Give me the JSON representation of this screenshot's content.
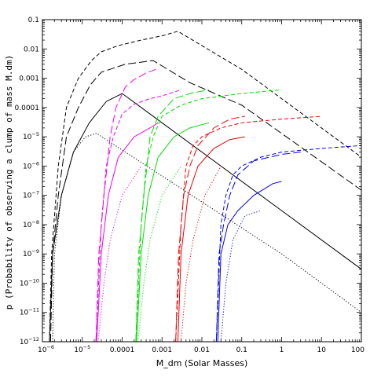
{
  "chart_data": {
    "type": "line",
    "title": "",
    "xlabel": "M_dm (Solar Masses)",
    "ylabel": "p (Probability of observing a clump of mass M.dm)",
    "xscale": "log",
    "yscale": "log",
    "xlim": [
      1e-06,
      100
    ],
    "ylim": [
      1e-12,
      0.1
    ],
    "grid": false,
    "legend": "none",
    "x_ticks": [
      {
        "v": 1e-06,
        "base": "10",
        "exp": "−6"
      },
      {
        "v": 1e-05,
        "base": "10",
        "exp": "−5"
      },
      {
        "v": 0.0001,
        "text": "0.0001"
      },
      {
        "v": 0.001,
        "text": "0.001"
      },
      {
        "v": 0.01,
        "text": "0.01"
      },
      {
        "v": 0.1,
        "text": "0.1"
      },
      {
        "v": 1,
        "text": "1"
      },
      {
        "v": 10,
        "text": "10"
      },
      {
        "v": 100,
        "text": "100"
      }
    ],
    "y_ticks": [
      {
        "v": 1e-12,
        "base": "10",
        "exp": "−12"
      },
      {
        "v": 1e-11,
        "base": "10",
        "exp": "−11"
      },
      {
        "v": 1e-10,
        "base": "10",
        "exp": "−10"
      },
      {
        "v": 1e-09,
        "base": "10",
        "exp": "−9"
      },
      {
        "v": 1e-08,
        "base": "10",
        "exp": "−8"
      },
      {
        "v": 1e-07,
        "base": "10",
        "exp": "−7"
      },
      {
        "v": 1e-06,
        "base": "10",
        "exp": "−6"
      },
      {
        "v": 1e-05,
        "base": "10",
        "exp": "−5"
      },
      {
        "v": 0.0001,
        "text": "0.0001"
      },
      {
        "v": 0.001,
        "text": "0.001"
      },
      {
        "v": 0.01,
        "text": "0.01"
      },
      {
        "v": 0.1,
        "text": "0.1"
      }
    ],
    "series": [
      {
        "color": "#000000",
        "style": "dotted",
        "points": [
          [
            1.8e-06,
            1e-12
          ],
          [
            2e-06,
            1e-09
          ],
          [
            3e-06,
            1e-07
          ],
          [
            6e-06,
            3e-06
          ],
          [
            1.2e-05,
            1e-05
          ],
          [
            2.3e-05,
            1.3e-05
          ],
          [
            1,
            1e-09
          ],
          [
            100,
            1e-11
          ]
        ]
      },
      {
        "color": "#000000",
        "style": "solid",
        "points": [
          [
            1.5e-06,
            1e-12
          ],
          [
            1.8e-06,
            1e-09
          ],
          [
            3e-06,
            1e-07
          ],
          [
            6e-06,
            3e-06
          ],
          [
            1.5e-05,
            3e-05
          ],
          [
            4e-05,
            0.00016
          ],
          [
            0.0001,
            0.0003
          ],
          [
            0.001,
            3e-05
          ],
          [
            1,
            3e-08
          ],
          [
            100,
            3e-10
          ]
        ]
      },
      {
        "color": "#000000",
        "style": "dashed",
        "points": [
          [
            1.5e-06,
            1e-12
          ],
          [
            1.7e-06,
            1e-09
          ],
          [
            2.5e-06,
            1e-06
          ],
          [
            4e-06,
            0.0001
          ],
          [
            8e-06,
            0.001
          ],
          [
            1.7e-05,
            0.004
          ],
          [
            3e-05,
            0.008
          ],
          [
            8e-05,
            0.013
          ],
          [
            0.0003,
            0.02
          ],
          [
            0.001,
            0.028
          ],
          [
            0.0025,
            0.04
          ],
          [
            0.1,
            0.002
          ],
          [
            1,
            0.0002
          ],
          [
            100,
            2e-06
          ]
        ]
      },
      {
        "color": "#000000",
        "style": "long-dashed",
        "points": [
          [
            1.6e-06,
            1e-12
          ],
          [
            1.8e-06,
            1e-09
          ],
          [
            2.5e-06,
            1e-07
          ],
          [
            4e-06,
            1e-05
          ],
          [
            8e-06,
            0.0001
          ],
          [
            1.6e-05,
            0.0006
          ],
          [
            3e-05,
            0.0016
          ],
          [
            0.00012,
            0.003
          ],
          [
            0.0006,
            0.004
          ],
          [
            0.005,
            0.0007
          ],
          [
            0.1,
            0.00012
          ],
          [
            1,
            1.3e-05
          ],
          [
            10,
            1.4e-06
          ],
          [
            100,
            1.5e-07
          ]
        ]
      },
      {
        "color": "#ee00ee",
        "style": "dotted",
        "points": [
          [
            2.5e-05,
            1e-12
          ],
          [
            3.5e-05,
            1e-10
          ],
          [
            5e-05,
            3e-09
          ],
          [
            0.0001,
            1e-07
          ],
          [
            0.0003,
            1e-06
          ]
        ]
      },
      {
        "color": "#ee00ee",
        "style": "solid",
        "points": [
          [
            2.3e-05,
            1e-12
          ],
          [
            3e-05,
            1e-09
          ],
          [
            4.5e-05,
            1e-07
          ],
          [
            8e-05,
            2e-06
          ],
          [
            0.0002,
            1e-05
          ],
          [
            0.0005,
            2e-05
          ],
          [
            0.0008,
            3e-05
          ]
        ]
      },
      {
        "color": "#ee00ee",
        "style": "dashed",
        "points": [
          [
            2.2e-05,
            1e-12
          ],
          [
            3e-05,
            1e-08
          ],
          [
            4e-05,
            1e-06
          ],
          [
            6e-05,
            1e-05
          ],
          [
            0.0001,
            6e-05
          ],
          [
            0.0002,
            0.00013
          ],
          [
            0.0005,
            0.0002
          ],
          [
            0.001,
            0.00025
          ],
          [
            0.003,
            0.0004
          ]
        ]
      },
      {
        "color": "#ee00ee",
        "style": "long-dashed",
        "points": [
          [
            2.2e-05,
            1e-12
          ],
          [
            2.6e-05,
            1e-09
          ],
          [
            3.5e-05,
            1e-07
          ],
          [
            5e-05,
            1e-05
          ],
          [
            7e-05,
            0.0001
          ],
          [
            0.00012,
            0.0005
          ],
          [
            0.0002,
            0.0009
          ],
          [
            0.0004,
            0.0015
          ],
          [
            0.0007,
            0.002
          ]
        ]
      },
      {
        "color": "#00dd00",
        "style": "dotted",
        "points": [
          [
            0.00025,
            1e-12
          ],
          [
            0.00035,
            1e-10
          ],
          [
            0.0005,
            3e-09
          ],
          [
            0.001,
            1e-07
          ],
          [
            0.003,
            1e-06
          ]
        ]
      },
      {
        "color": "#00dd00",
        "style": "solid",
        "points": [
          [
            0.00023,
            1e-12
          ],
          [
            0.0003,
            1e-09
          ],
          [
            0.00045,
            1e-07
          ],
          [
            0.0008,
            2e-06
          ],
          [
            0.002,
            1e-05
          ],
          [
            0.005,
            2e-05
          ],
          [
            0.015,
            3e-05
          ]
        ]
      },
      {
        "color": "#00dd00",
        "style": "dashed",
        "points": [
          [
            0.00022,
            1e-12
          ],
          [
            0.0003,
            1e-08
          ],
          [
            0.0004,
            1e-06
          ],
          [
            0.0006,
            1e-05
          ],
          [
            0.001,
            5e-05
          ],
          [
            0.003,
            0.00012
          ],
          [
            0.01,
            0.0002
          ],
          [
            0.1,
            0.0003
          ],
          [
            1,
            0.0004
          ]
        ]
      },
      {
        "color": "#00dd00",
        "style": "long-dashed",
        "points": [
          [
            0.00022,
            1e-12
          ],
          [
            0.00026,
            1e-09
          ],
          [
            0.00035,
            1e-07
          ],
          [
            0.0005,
            1e-05
          ],
          [
            0.0008,
            5e-05
          ],
          [
            0.002,
            0.0002
          ],
          [
            0.005,
            0.0003
          ],
          [
            0.015,
            0.0004
          ]
        ]
      },
      {
        "color": "#ee0000",
        "style": "dotted",
        "points": [
          [
            0.003,
            1e-12
          ],
          [
            0.004,
            1e-10
          ],
          [
            0.006,
            3e-09
          ],
          [
            0.012,
            1e-07
          ],
          [
            0.03,
            1e-06
          ]
        ]
      },
      {
        "color": "#ee0000",
        "style": "solid",
        "points": [
          [
            0.0025,
            1e-12
          ],
          [
            0.003,
            1e-09
          ],
          [
            0.0045,
            1e-07
          ],
          [
            0.008,
            1e-06
          ],
          [
            0.02,
            4e-06
          ],
          [
            0.05,
            8e-06
          ],
          [
            0.12,
            1e-05
          ]
        ]
      },
      {
        "color": "#ee0000",
        "style": "dashed",
        "points": [
          [
            0.0022,
            1e-12
          ],
          [
            0.003,
            1e-08
          ],
          [
            0.004,
            1e-06
          ],
          [
            0.006,
            5e-06
          ],
          [
            0.01,
            1e-05
          ],
          [
            0.03,
            2e-05
          ],
          [
            0.1,
            3e-05
          ],
          [
            1,
            4e-05
          ],
          [
            10,
            5e-05
          ]
        ]
      },
      {
        "color": "#ee0000",
        "style": "long-dashed",
        "points": [
          [
            0.0022,
            1e-12
          ],
          [
            0.0026,
            1e-09
          ],
          [
            0.0035,
            1e-07
          ],
          [
            0.005,
            1e-06
          ],
          [
            0.008,
            5e-06
          ],
          [
            0.02,
            2e-05
          ],
          [
            0.05,
            4e-05
          ],
          [
            0.12,
            5e-05
          ]
        ]
      },
      {
        "color": "#0000ee",
        "style": "dotted",
        "points": [
          [
            0.03,
            1e-12
          ],
          [
            0.04,
            1e-10
          ],
          [
            0.06,
            3e-09
          ],
          [
            0.12,
            2e-08
          ],
          [
            0.3,
            3e-08
          ]
        ]
      },
      {
        "color": "#0000ee",
        "style": "solid",
        "points": [
          [
            0.025,
            1e-12
          ],
          [
            0.03,
            1e-09
          ],
          [
            0.045,
            1e-08
          ],
          [
            0.08,
            3e-08
          ],
          [
            0.2,
            1e-07
          ],
          [
            0.6,
            2.5e-07
          ],
          [
            1,
            3e-07
          ]
        ]
      },
      {
        "color": "#0000ee",
        "style": "dashed",
        "points": [
          [
            0.023,
            1e-12
          ],
          [
            0.03,
            1e-08
          ],
          [
            0.04,
            1e-07
          ],
          [
            0.06,
            5e-07
          ],
          [
            0.1,
            1e-06
          ],
          [
            0.3,
            2e-06
          ],
          [
            1,
            3e-06
          ],
          [
            10,
            4e-06
          ],
          [
            100,
            5e-06
          ]
        ]
      },
      {
        "color": "#0000ee",
        "style": "long-dashed",
        "points": [
          [
            0.023,
            1e-12
          ],
          [
            0.027,
            1e-09
          ],
          [
            0.035,
            1e-08
          ],
          [
            0.05,
            1e-07
          ],
          [
            0.08,
            5e-07
          ],
          [
            0.2,
            1.5e-06
          ],
          [
            1,
            2.5e-06
          ],
          [
            3,
            3e-06
          ]
        ]
      }
    ]
  }
}
